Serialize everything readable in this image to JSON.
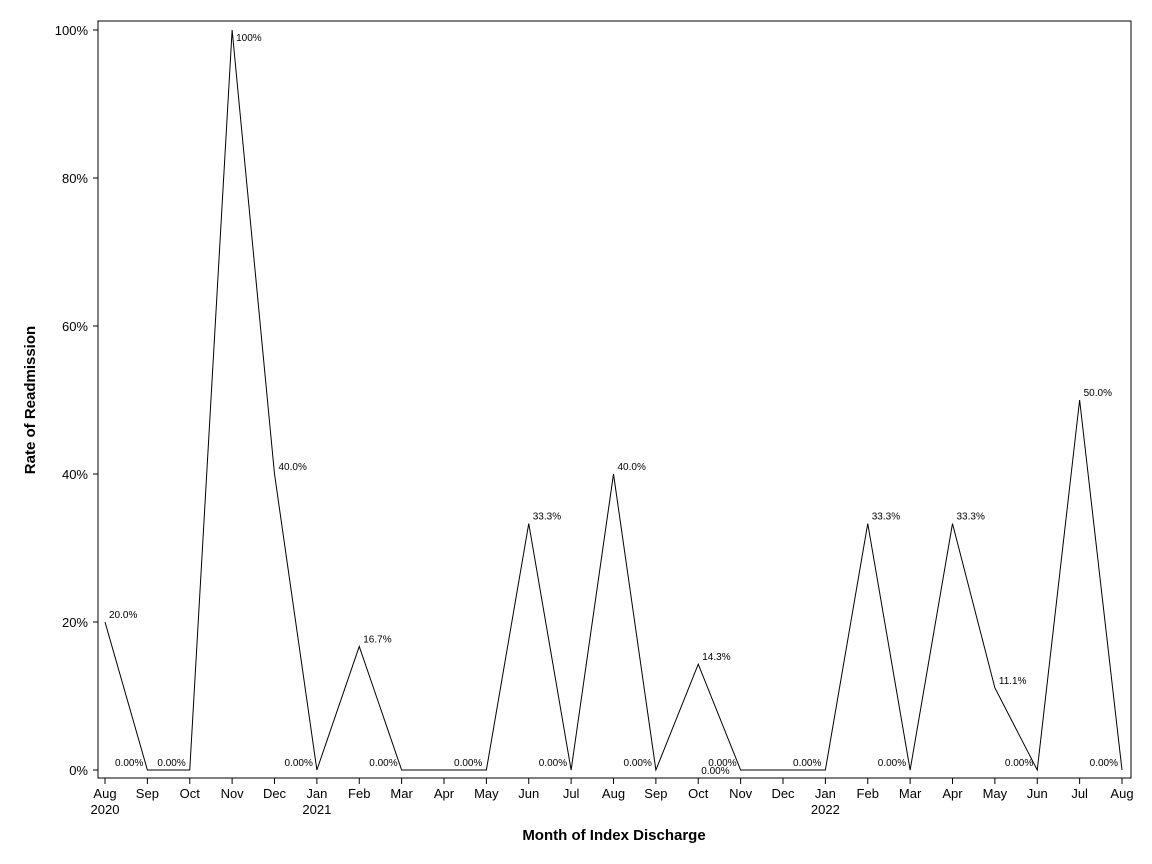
{
  "chart_data": {
    "type": "line",
    "title": "",
    "xlabel": "Month of Index Discharge",
    "ylabel": "Rate of Readmission",
    "ylim": [
      0,
      100
    ],
    "yticks": [
      "0%",
      "20%",
      "40%",
      "60%",
      "80%",
      "100%"
    ],
    "ytick_values": [
      0,
      20,
      40,
      60,
      80,
      100
    ],
    "grid": false,
    "legend": "none",
    "line_color": "#000000",
    "x": [
      "Aug 2020",
      "Sep 2020",
      "Oct 2020",
      "Nov 2020",
      "Dec 2020",
      "Jan 2021",
      "Feb 2021",
      "Mar 2021",
      "Apr 2021",
      "May 2021",
      "Jun 2021",
      "Jul 2021",
      "Aug 2021",
      "Sep 2021",
      "Oct 2021",
      "Nov 2021",
      "Dec 2021",
      "Jan 2022",
      "Feb 2022",
      "Mar 2022",
      "Apr 2022",
      "May 2022",
      "Jun 2022",
      "Jul 2022",
      "Aug 2022"
    ],
    "xtick_month": [
      "Aug",
      "Sep",
      "Oct",
      "Nov",
      "Dec",
      "Jan",
      "Feb",
      "Mar",
      "Apr",
      "May",
      "Jun",
      "Jul",
      "Aug",
      "Sep",
      "Oct",
      "Nov",
      "Dec",
      "Jan",
      "Feb",
      "Mar",
      "Apr",
      "May",
      "Jun",
      "Jul",
      "Aug"
    ],
    "xtick_year": [
      "2020",
      "",
      "",
      "",
      "",
      "2021",
      "",
      "",
      "",
      "",
      "",
      "",
      "",
      "",
      "",
      "",
      "",
      "2022",
      "",
      "",
      "",
      "",
      "",
      "",
      ""
    ],
    "series": [
      {
        "values": [
          20.0,
          0,
          0,
          100,
          40.0,
          0,
          16.7,
          0,
          0,
          0,
          33.3,
          0,
          40.0,
          0,
          14.3,
          0,
          0,
          0,
          33.3,
          0,
          33.3,
          11.1,
          0,
          50.0,
          0
        ],
        "labels": [
          "20.0%",
          "0.00%",
          "0.00%",
          "100%",
          "40.0%",
          "0.00%",
          "16.7%",
          "0.00%",
          "",
          "0.00%",
          "33.3%",
          "0.00%",
          "40.0%",
          "0.00%",
          "14.3%",
          "0.00%",
          "",
          "0.00%",
          "33.3%",
          "0.00%",
          "33.3%",
          "11.1%",
          "0.00%",
          "50.0%",
          "0.00%"
        ]
      }
    ],
    "extra_labels": [
      {
        "index": 14,
        "text": "0.00%"
      }
    ]
  }
}
